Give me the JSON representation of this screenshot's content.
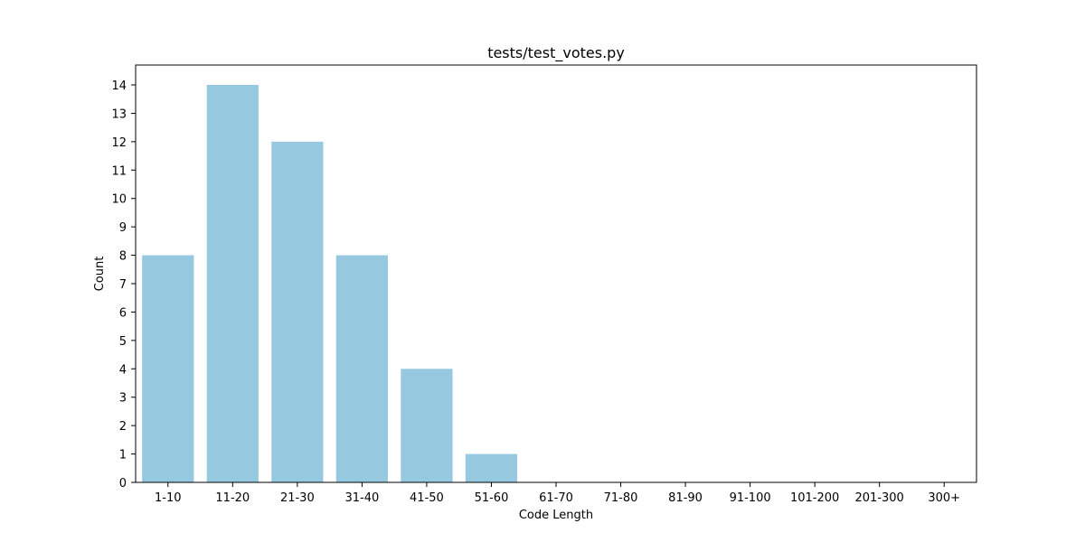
{
  "chart_data": {
    "type": "bar",
    "title": "tests/test_votes.py",
    "xlabel": "Code Length",
    "ylabel": "Count",
    "categories": [
      "1-10",
      "11-20",
      "21-30",
      "31-40",
      "41-50",
      "51-60",
      "61-70",
      "71-80",
      "81-90",
      "91-100",
      "101-200",
      "201-300",
      "300+"
    ],
    "values": [
      8,
      14,
      12,
      8,
      4,
      1,
      0,
      0,
      0,
      0,
      0,
      0,
      0
    ],
    "ylim": [
      0,
      14.7
    ],
    "yticks": [
      0,
      1,
      2,
      3,
      4,
      5,
      6,
      7,
      8,
      9,
      10,
      11,
      12,
      13,
      14
    ],
    "grid": false,
    "bar_color": "#96c9df"
  }
}
